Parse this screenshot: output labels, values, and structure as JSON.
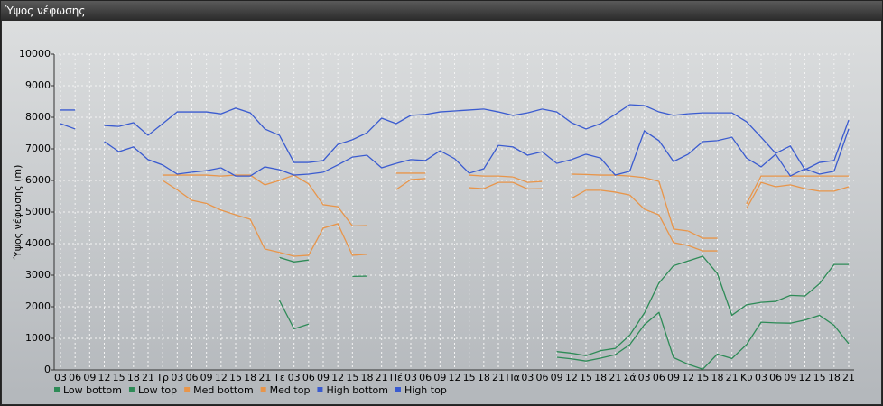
{
  "chart_data": {
    "type": "line",
    "title": "Ύψος νέφωσης",
    "y_label": "Ύψος νέφωσης (m)",
    "categories": [
      "03",
      "06",
      "09",
      "12",
      "15",
      "18",
      "21",
      "Τρ",
      "03",
      "06",
      "09",
      "12",
      "15",
      "18",
      "21",
      "Τε",
      "03",
      "06",
      "09",
      "12",
      "15",
      "18",
      "21",
      "Πέ",
      "03",
      "06",
      "09",
      "12",
      "15",
      "18",
      "21",
      "Πα",
      "03",
      "06",
      "09",
      "12",
      "15",
      "18",
      "21",
      "Σά",
      "03",
      "06",
      "09",
      "12",
      "15",
      "18",
      "21",
      "Κυ",
      "03",
      "06",
      "09",
      "12",
      "15",
      "18",
      "21"
    ],
    "ylim": [
      0,
      10000
    ],
    "yticks": [
      0,
      1000,
      2000,
      3000,
      4000,
      5000,
      6000,
      7000,
      8000,
      9000,
      10000
    ],
    "grid": true,
    "series": [
      {
        "name": "Low bottom",
        "color": "#2e8b57",
        "values": [
          null,
          null,
          null,
          null,
          null,
          null,
          null,
          null,
          null,
          null,
          null,
          null,
          null,
          null,
          null,
          2200,
          1300,
          1450,
          null,
          null,
          null,
          null,
          null,
          null,
          null,
          null,
          null,
          null,
          null,
          null,
          null,
          null,
          null,
          null,
          400,
          350,
          280,
          370,
          480,
          800,
          1430,
          1820,
          390,
          180,
          20,
          500,
          360,
          800,
          1510,
          1490,
          1480,
          1580,
          1730,
          1410,
          830
        ]
      },
      {
        "name": "Low top",
        "color": "#2e8b57",
        "values": [
          null,
          null,
          null,
          null,
          null,
          null,
          null,
          null,
          null,
          null,
          null,
          null,
          null,
          null,
          null,
          3560,
          3420,
          3480,
          null,
          null,
          2960,
          2970,
          null,
          null,
          null,
          null,
          null,
          null,
          null,
          null,
          null,
          null,
          null,
          null,
          580,
          530,
          450,
          610,
          680,
          1100,
          1800,
          2750,
          3300,
          3450,
          3600,
          3050,
          1730,
          2060,
          2140,
          2170,
          2360,
          2340,
          2730,
          3340,
          3340
        ]
      },
      {
        "name": "Med bottom",
        "color": "#e8954a",
        "values": [
          null,
          null,
          null,
          null,
          null,
          null,
          null,
          6000,
          5700,
          5370,
          5270,
          5060,
          4910,
          4770,
          3830,
          3720,
          3600,
          3630,
          4490,
          4630,
          3630,
          3660,
          null,
          5710,
          6030,
          6060,
          null,
          null,
          5770,
          5740,
          5940,
          5940,
          5730,
          5740,
          null,
          5430,
          5690,
          5690,
          5630,
          5540,
          5090,
          4910,
          4030,
          3940,
          3770,
          3770,
          null,
          5110,
          5940,
          5800,
          5860,
          5740,
          5660,
          5660,
          5800
        ]
      },
      {
        "name": "Med top",
        "color": "#e8954a",
        "values": [
          null,
          null,
          null,
          null,
          null,
          null,
          null,
          6170,
          6170,
          6170,
          6170,
          6140,
          6170,
          6170,
          5860,
          6000,
          6170,
          5890,
          5230,
          5170,
          4560,
          4570,
          null,
          6230,
          6230,
          6230,
          null,
          null,
          6170,
          6140,
          6140,
          6110,
          5940,
          5970,
          null,
          6200,
          6190,
          6170,
          6170,
          6140,
          6090,
          5970,
          4460,
          4400,
          4170,
          4170,
          null,
          5260,
          6140,
          6140,
          6140,
          6140,
          6140,
          6140,
          6140
        ]
      },
      {
        "name": "High bottom",
        "color": "#3a5bd0",
        "values": [
          7800,
          7630,
          null,
          7230,
          6910,
          7060,
          6660,
          6490,
          6200,
          6260,
          6310,
          6400,
          6140,
          6140,
          6430,
          6340,
          6170,
          6200,
          6260,
          6490,
          6740,
          6800,
          6400,
          6540,
          6660,
          6630,
          6940,
          6690,
          6230,
          6370,
          7110,
          7060,
          6800,
          6910,
          6540,
          6660,
          6830,
          6710,
          6170,
          6290,
          7570,
          7260,
          6600,
          6830,
          7230,
          7260,
          7370,
          6710,
          6430,
          6830,
          6140,
          6370,
          6200,
          6290,
          7630
        ]
      },
      {
        "name": "High top",
        "color": "#3a5bd0",
        "values": [
          8230,
          8230,
          null,
          7740,
          7710,
          7830,
          7430,
          7800,
          8170,
          8170,
          8170,
          8110,
          8290,
          8140,
          7630,
          7430,
          6570,
          6570,
          6630,
          7140,
          7290,
          7510,
          7970,
          7800,
          8060,
          8090,
          8170,
          8200,
          8230,
          8260,
          8170,
          8060,
          8140,
          8260,
          8170,
          7830,
          7630,
          7800,
          8090,
          8400,
          8370,
          8170,
          8060,
          8110,
          8140,
          8140,
          8140,
          7860,
          7370,
          6860,
          7090,
          6340,
          6570,
          6630,
          7910
        ]
      }
    ]
  }
}
